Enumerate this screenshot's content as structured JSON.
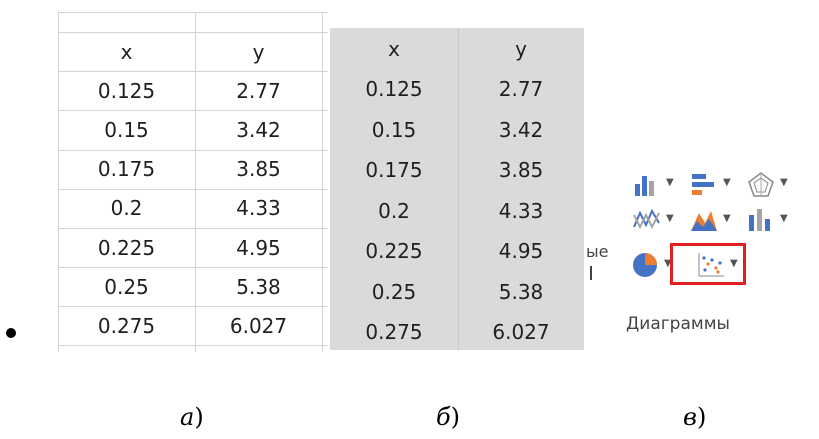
{
  "table_a": {
    "headers": [
      "x",
      "y"
    ],
    "rows": [
      [
        "0.125",
        "2.77"
      ],
      [
        "0.15",
        "3.42"
      ],
      [
        "0.175",
        "3.85"
      ],
      [
        "0.2",
        "4.33"
      ],
      [
        "0.225",
        "4.95"
      ],
      [
        "0.25",
        "5.38"
      ],
      [
        "0.275",
        "6.027"
      ]
    ]
  },
  "table_b": {
    "headers": [
      "x",
      "y"
    ],
    "rows": [
      [
        "0.125",
        "2.77"
      ],
      [
        "0.15",
        "3.42"
      ],
      [
        "0.175",
        "3.85"
      ],
      [
        "0.2",
        "4.33"
      ],
      [
        "0.225",
        "4.95"
      ],
      [
        "0.25",
        "5.38"
      ],
      [
        "0.275",
        "6.027"
      ]
    ],
    "selection_color": "#dadada"
  },
  "ribbon": {
    "group_label": "Диаграммы",
    "left_partial_text": "ые",
    "highlight_color": "#e02020",
    "icons": [
      "column-chart-icon",
      "bar-chart-icon",
      "radar-chart-icon",
      "line-chart-icon",
      "area-chart-icon",
      "stock-chart-icon",
      "pie-chart-icon",
      "scatter-chart-icon"
    ]
  },
  "captions": {
    "a_letter": "а",
    "b_letter": "б",
    "c_letter": "в",
    "suffix": ")"
  }
}
